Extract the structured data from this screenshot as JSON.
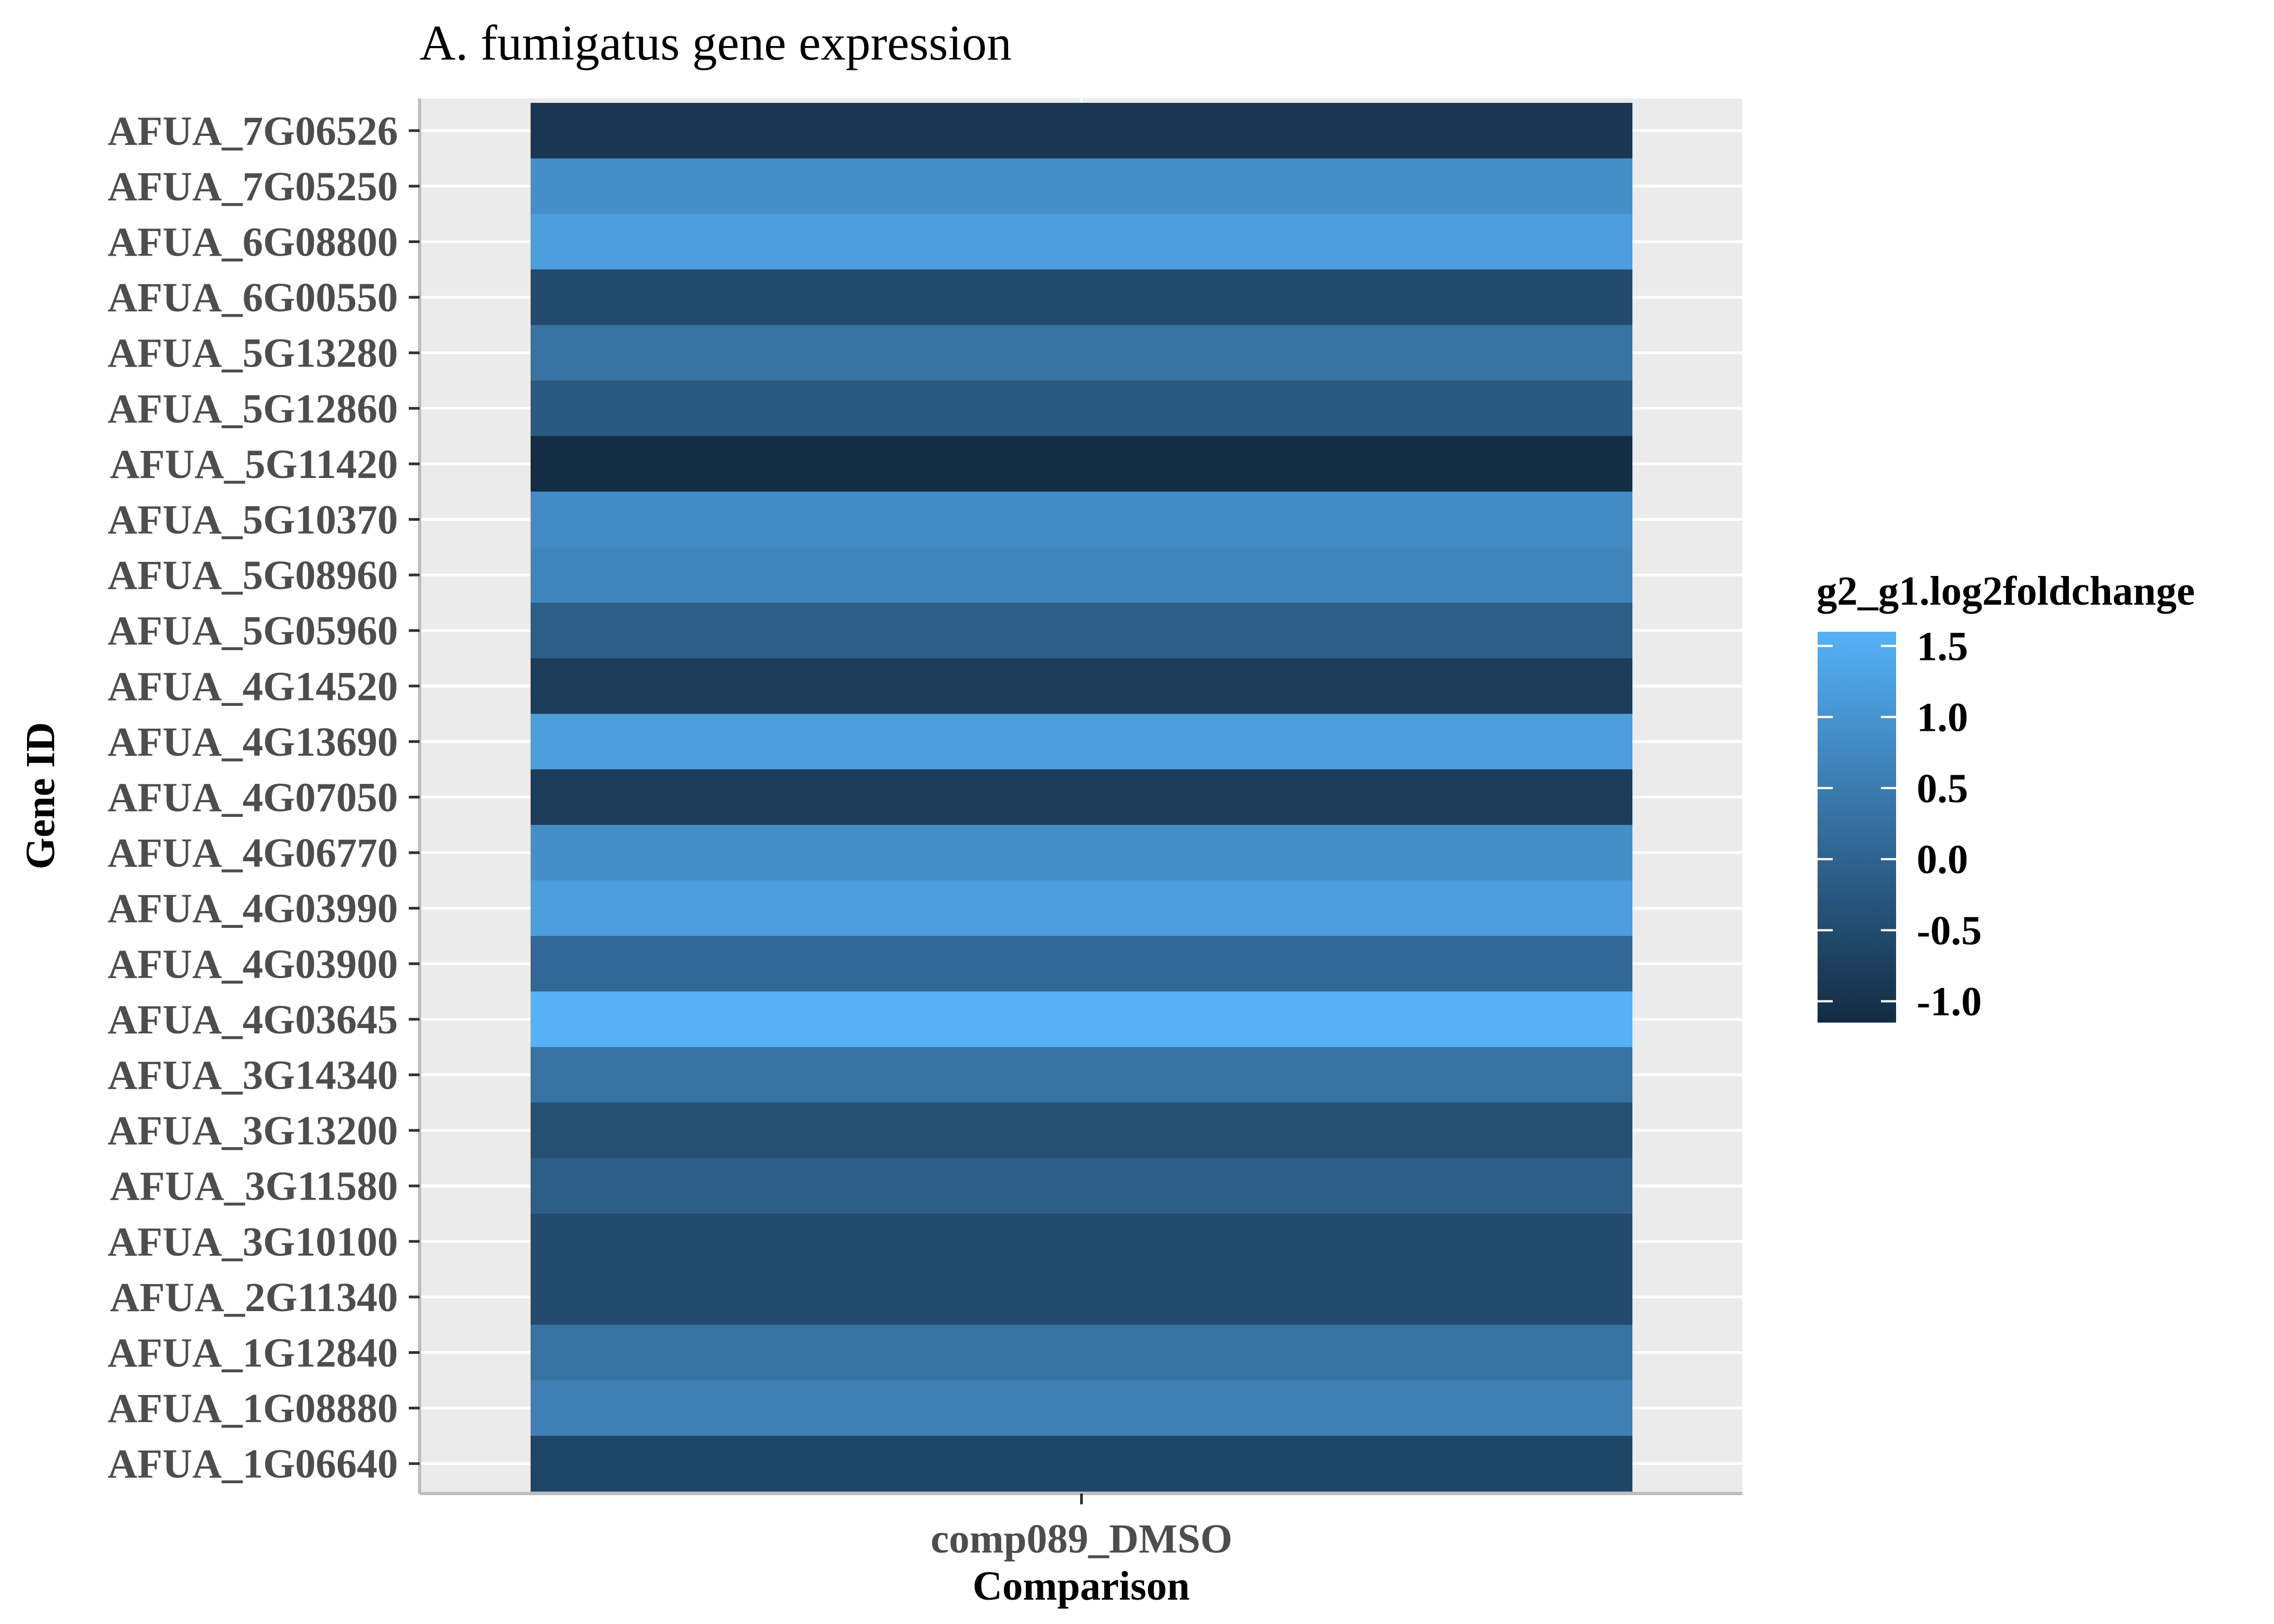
{
  "chart_data": {
    "type": "heatmap",
    "title": "A. fumigatus gene expression",
    "xlabel": "Comparison",
    "ylabel": "Gene ID",
    "x_categories": [
      "comp089_DMSO"
    ],
    "y_categories": [
      "AFUA_7G06526",
      "AFUA_7G05250",
      "AFUA_6G08800",
      "AFUA_6G00550",
      "AFUA_5G13280",
      "AFUA_5G12860",
      "AFUA_5G11420",
      "AFUA_5G10370",
      "AFUA_5G08960",
      "AFUA_5G05960",
      "AFUA_4G14520",
      "AFUA_4G13690",
      "AFUA_4G07050",
      "AFUA_4G06770",
      "AFUA_4G03990",
      "AFUA_4G03900",
      "AFUA_4G03645",
      "AFUA_3G14340",
      "AFUA_3G13200",
      "AFUA_3G11580",
      "AFUA_3G10100",
      "AFUA_2G11340",
      "AFUA_1G12840",
      "AFUA_1G08880",
      "AFUA_1G06640"
    ],
    "values": [
      -0.9,
      0.9,
      1.2,
      -0.5,
      0.3,
      -0.2,
      -1.1,
      0.8,
      0.7,
      -0.1,
      -0.8,
      1.2,
      -0.8,
      0.9,
      1.2,
      0.1,
      1.6,
      0.3,
      -0.4,
      -0.1,
      -0.5,
      -0.5,
      0.3,
      0.6,
      -0.6
    ],
    "color_scale": {
      "name": "g2_g1.log2foldchange",
      "low_color": "#132B43",
      "high_color": "#56B1F7",
      "breaks": [
        1.5,
        1.0,
        0.5,
        0.0,
        -0.5,
        -1.0
      ],
      "break_labels": [
        "1.5",
        "1.0",
        "0.5",
        "0.0",
        "-0.5",
        "-1.0"
      ],
      "limits": [
        -1.15,
        1.6
      ]
    },
    "grid": true,
    "legend_position": "right"
  }
}
